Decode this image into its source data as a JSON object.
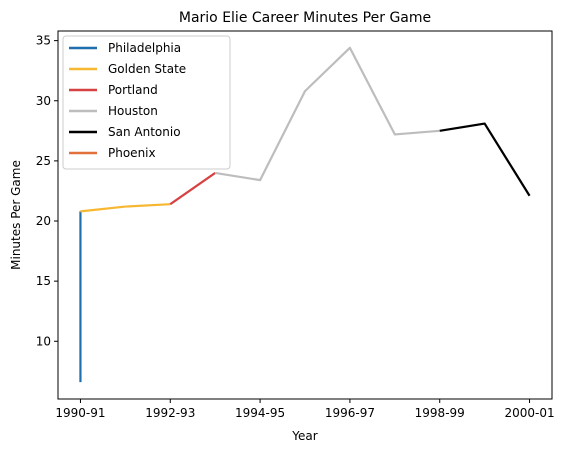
{
  "chart_data": {
    "type": "line",
    "title": "Mario Elie Career Minutes Per Game",
    "xlabel": "Year",
    "ylabel": "Minutes Per Game",
    "x_tick_labels": [
      "1990-91",
      "1992-93",
      "1994-95",
      "1996-97",
      "1998-99",
      "2000-01"
    ],
    "x_tick_positions": [
      0,
      2,
      4,
      6,
      8,
      10
    ],
    "y_ticks": [
      10,
      15,
      20,
      25,
      30,
      35
    ],
    "xlim": [
      -0.5,
      10.5
    ],
    "ylim": [
      5.2,
      35.8
    ],
    "legend_position": "top-left",
    "series": [
      {
        "name": "Philadelphia",
        "color": "#1f6fb0",
        "points": [
          [
            0,
            6.6
          ],
          [
            0,
            20.8
          ]
        ]
      },
      {
        "name": "Golden State",
        "color": "#f6b731",
        "points": [
          [
            0,
            20.8
          ],
          [
            1,
            21.2
          ],
          [
            2,
            21.4
          ]
        ]
      },
      {
        "name": "Portland",
        "color": "#d64242",
        "points": [
          [
            2,
            21.4
          ],
          [
            3,
            24.0
          ]
        ]
      },
      {
        "name": "Houston",
        "color": "#bdbdbd",
        "points": [
          [
            3,
            24.0
          ],
          [
            4,
            23.4
          ],
          [
            5,
            30.8
          ],
          [
            6,
            34.4
          ],
          [
            7,
            27.2
          ],
          [
            8,
            27.5
          ]
        ]
      },
      {
        "name": "San Antonio",
        "color": "#000000",
        "points": [
          [
            8,
            27.5
          ],
          [
            9,
            28.1
          ],
          [
            10,
            22.1
          ]
        ]
      },
      {
        "name": "Phoenix",
        "color": "#e2703a",
        "points": []
      }
    ]
  }
}
